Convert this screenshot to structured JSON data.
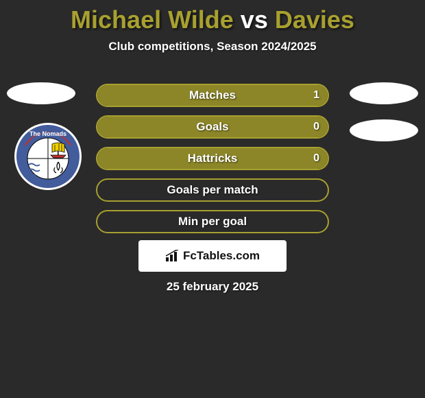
{
  "title": {
    "player1": "Michael Wilde",
    "vs": "vs",
    "player2": "Davies",
    "player1_color": "#a8a030",
    "vs_color": "#ffffff",
    "player2_color": "#a8a030"
  },
  "subtitle": "Club competitions, Season 2024/2025",
  "accent_color": "#a8a030",
  "accent_fill": "#8c8628",
  "background_color": "#2a2a2a",
  "bars": [
    {
      "label": "Matches",
      "value": "1",
      "fill_pct": 100,
      "show_value": true
    },
    {
      "label": "Goals",
      "value": "0",
      "fill_pct": 100,
      "show_value": true
    },
    {
      "label": "Hattricks",
      "value": "0",
      "fill_pct": 100,
      "show_value": true
    },
    {
      "label": "Goals per match",
      "value": "",
      "fill_pct": 0,
      "show_value": false
    },
    {
      "label": "Min per goal",
      "value": "",
      "fill_pct": 0,
      "show_value": false
    }
  ],
  "logo_text": "FcTables.com",
  "date": "25 february 2025",
  "crest": {
    "banner_text": "The Nomads",
    "outer_color": "#425c9c",
    "banner_color": "#c03030",
    "inner_bg": "#ffffff",
    "sail_color": "#f0d000",
    "hull_color": "#c03030"
  }
}
